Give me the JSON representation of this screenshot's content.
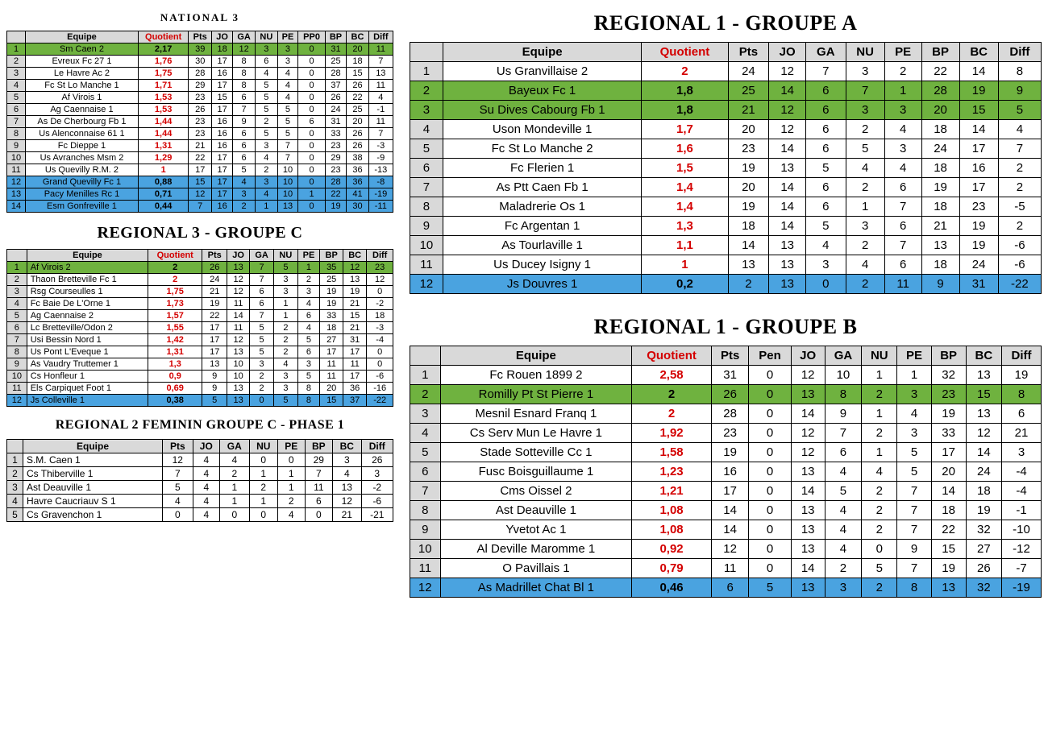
{
  "colors": {
    "highlight_green": "#6fb23f",
    "highlight_blue": "#4aa3e0",
    "header_bg": "#d9d9d9",
    "quotient_red": "#d40000"
  },
  "nat3": {
    "title": "NATIONAL 3",
    "columns": [
      "",
      "Equipe",
      "Quotient",
      "Pts",
      "JO",
      "GA",
      "NU",
      "PE",
      "PP0",
      "BP",
      "BC",
      "Diff"
    ],
    "rows": [
      {
        "hl": "green",
        "c": [
          "1",
          "Sm Caen 2",
          "2,17",
          "39",
          "18",
          "12",
          "3",
          "3",
          "0",
          "31",
          "20",
          "11"
        ]
      },
      {
        "c": [
          "2",
          "Evreux Fc 27 1",
          "1,76",
          "30",
          "17",
          "8",
          "6",
          "3",
          "0",
          "25",
          "18",
          "7"
        ]
      },
      {
        "c": [
          "3",
          "Le Havre Ac 2",
          "1,75",
          "28",
          "16",
          "8",
          "4",
          "4",
          "0",
          "28",
          "15",
          "13"
        ]
      },
      {
        "c": [
          "4",
          "Fc St Lo Manche 1",
          "1,71",
          "29",
          "17",
          "8",
          "5",
          "4",
          "0",
          "37",
          "26",
          "11"
        ]
      },
      {
        "c": [
          "5",
          "Af Virois 1",
          "1,53",
          "23",
          "15",
          "6",
          "5",
          "4",
          "0",
          "26",
          "22",
          "4"
        ]
      },
      {
        "c": [
          "6",
          "Ag Caennaise 1",
          "1,53",
          "26",
          "17",
          "7",
          "5",
          "5",
          "0",
          "24",
          "25",
          "-1"
        ]
      },
      {
        "c": [
          "7",
          "As De Cherbourg Fb 1",
          "1,44",
          "23",
          "16",
          "9",
          "2",
          "5",
          "6",
          "31",
          "20",
          "11"
        ]
      },
      {
        "c": [
          "8",
          "Us Alenconnaise 61 1",
          "1,44",
          "23",
          "16",
          "6",
          "5",
          "5",
          "0",
          "33",
          "26",
          "7"
        ]
      },
      {
        "c": [
          "9",
          "Fc Dieppe 1",
          "1,31",
          "21",
          "16",
          "6",
          "3",
          "7",
          "0",
          "23",
          "26",
          "-3"
        ]
      },
      {
        "c": [
          "10",
          "Us Avranches Msm 2",
          "1,29",
          "22",
          "17",
          "6",
          "4",
          "7",
          "0",
          "29",
          "38",
          "-9"
        ]
      },
      {
        "c": [
          "11",
          "Us Quevilly R.M. 2",
          "1",
          "17",
          "17",
          "5",
          "2",
          "10",
          "0",
          "23",
          "36",
          "-13"
        ]
      },
      {
        "hl": "blue",
        "c": [
          "12",
          "Grand Quevilly Fc 1",
          "0,88",
          "15",
          "17",
          "4",
          "3",
          "10",
          "0",
          "28",
          "36",
          "-8"
        ]
      },
      {
        "hl": "blue",
        "c": [
          "13",
          "Pacy Menilles Rc 1",
          "0,71",
          "12",
          "17",
          "3",
          "4",
          "10",
          "1",
          "22",
          "41",
          "-19"
        ]
      },
      {
        "hl": "blue",
        "c": [
          "14",
          "Esm Gonfreville 1",
          "0,44",
          "7",
          "16",
          "2",
          "1",
          "13",
          "0",
          "19",
          "30",
          "-11"
        ]
      }
    ]
  },
  "r3c": {
    "title": "REGIONAL 3 - GROUPE C",
    "columns": [
      "",
      "Equipe",
      "Quotient",
      "Pts",
      "JO",
      "GA",
      "NU",
      "PE",
      "BP",
      "BC",
      "Diff"
    ],
    "rows": [
      {
        "hl": "green",
        "c": [
          "1",
          "Af Virois 2",
          "2",
          "26",
          "13",
          "7",
          "5",
          "1",
          "35",
          "12",
          "23"
        ]
      },
      {
        "c": [
          "2",
          "Thaon Bretteville Fc 1",
          "2",
          "24",
          "12",
          "7",
          "3",
          "2",
          "25",
          "13",
          "12"
        ]
      },
      {
        "c": [
          "3",
          "Rsg Courseulles 1",
          "1,75",
          "21",
          "12",
          "6",
          "3",
          "3",
          "19",
          "19",
          "0"
        ]
      },
      {
        "c": [
          "4",
          "Fc Baie De L'Orne 1",
          "1,73",
          "19",
          "11",
          "6",
          "1",
          "4",
          "19",
          "21",
          "-2"
        ]
      },
      {
        "c": [
          "5",
          "Ag Caennaise 2",
          "1,57",
          "22",
          "14",
          "7",
          "1",
          "6",
          "33",
          "15",
          "18"
        ]
      },
      {
        "c": [
          "6",
          "Lc Bretteville/Odon 2",
          "1,55",
          "17",
          "11",
          "5",
          "2",
          "4",
          "18",
          "21",
          "-3"
        ]
      },
      {
        "c": [
          "7",
          "Usi Bessin Nord 1",
          "1,42",
          "17",
          "12",
          "5",
          "2",
          "5",
          "27",
          "31",
          "-4"
        ]
      },
      {
        "c": [
          "8",
          "Us Pont L'Eveque 1",
          "1,31",
          "17",
          "13",
          "5",
          "2",
          "6",
          "17",
          "17",
          "0"
        ]
      },
      {
        "c": [
          "9",
          "As Vaudry Truttemer 1",
          "1,3",
          "13",
          "10",
          "3",
          "4",
          "3",
          "11",
          "11",
          "0"
        ]
      },
      {
        "c": [
          "10",
          "Cs Honfleur 1",
          "0,9",
          "9",
          "10",
          "2",
          "3",
          "5",
          "11",
          "17",
          "-6"
        ]
      },
      {
        "c": [
          "11",
          "Els Carpiquet Foot 1",
          "0,69",
          "9",
          "13",
          "2",
          "3",
          "8",
          "20",
          "36",
          "-16"
        ]
      },
      {
        "hl": "blue",
        "c": [
          "12",
          "Js Colleville 1",
          "0,38",
          "5",
          "13",
          "0",
          "5",
          "8",
          "15",
          "37",
          "-22"
        ]
      }
    ]
  },
  "r2fem": {
    "title": "REGIONAL 2 FEMININ GROUPE C - PHASE 1",
    "columns": [
      "",
      "Equipe",
      "Pts",
      "JO",
      "GA",
      "NU",
      "PE",
      "BP",
      "BC",
      "Diff"
    ],
    "rows": [
      {
        "c": [
          "1",
          "S.M. Caen 1",
          "12",
          "4",
          "4",
          "0",
          "0",
          "29",
          "3",
          "26"
        ]
      },
      {
        "c": [
          "2",
          "Cs Thiberville 1",
          "7",
          "4",
          "2",
          "1",
          "1",
          "7",
          "4",
          "3"
        ]
      },
      {
        "c": [
          "3",
          "Ast Deauville 1",
          "5",
          "4",
          "1",
          "2",
          "1",
          "11",
          "13",
          "-2"
        ]
      },
      {
        "c": [
          "4",
          "Havre Caucriauv S 1",
          "4",
          "4",
          "1",
          "1",
          "2",
          "6",
          "12",
          "-6"
        ]
      },
      {
        "c": [
          "5",
          "Cs Gravenchon 1",
          "0",
          "4",
          "0",
          "0",
          "4",
          "0",
          "21",
          "-21"
        ]
      }
    ]
  },
  "r1a": {
    "title": "REGIONAL 1 - GROUPE A",
    "columns": [
      "",
      "Equipe",
      "Quotient",
      "Pts",
      "JO",
      "GA",
      "NU",
      "PE",
      "BP",
      "BC",
      "Diff"
    ],
    "rows": [
      {
        "c": [
          "1",
          "Us Granvillaise 2",
          "2",
          "24",
          "12",
          "7",
          "3",
          "2",
          "22",
          "14",
          "8"
        ]
      },
      {
        "hl": "green",
        "c": [
          "2",
          "Bayeux Fc 1",
          "1,8",
          "25",
          "14",
          "6",
          "7",
          "1",
          "28",
          "19",
          "9"
        ]
      },
      {
        "hl": "green",
        "c": [
          "3",
          "Su Dives Cabourg Fb 1",
          "1,8",
          "21",
          "12",
          "6",
          "3",
          "3",
          "20",
          "15",
          "5"
        ]
      },
      {
        "c": [
          "4",
          "Uson Mondeville 1",
          "1,7",
          "20",
          "12",
          "6",
          "2",
          "4",
          "18",
          "14",
          "4"
        ]
      },
      {
        "c": [
          "5",
          "Fc St Lo Manche 2",
          "1,6",
          "23",
          "14",
          "6",
          "5",
          "3",
          "24",
          "17",
          "7"
        ]
      },
      {
        "c": [
          "6",
          "Fc Flerien 1",
          "1,5",
          "19",
          "13",
          "5",
          "4",
          "4",
          "18",
          "16",
          "2"
        ]
      },
      {
        "c": [
          "7",
          "As Ptt Caen Fb 1",
          "1,4",
          "20",
          "14",
          "6",
          "2",
          "6",
          "19",
          "17",
          "2"
        ]
      },
      {
        "c": [
          "8",
          "Maladrerie Os 1",
          "1,4",
          "19",
          "14",
          "6",
          "1",
          "7",
          "18",
          "23",
          "-5"
        ]
      },
      {
        "c": [
          "9",
          "Fc Argentan 1",
          "1,3",
          "18",
          "14",
          "5",
          "3",
          "6",
          "21",
          "19",
          "2"
        ]
      },
      {
        "c": [
          "10",
          "As Tourlaville 1",
          "1,1",
          "14",
          "13",
          "4",
          "2",
          "7",
          "13",
          "19",
          "-6"
        ]
      },
      {
        "c": [
          "11",
          "Us Ducey Isigny 1",
          "1",
          "13",
          "13",
          "3",
          "4",
          "6",
          "18",
          "24",
          "-6"
        ]
      },
      {
        "hl": "blue",
        "c": [
          "12",
          "Js Douvres 1",
          "0,2",
          "2",
          "13",
          "0",
          "2",
          "11",
          "9",
          "31",
          "-22"
        ]
      }
    ]
  },
  "r1b": {
    "title": "REGIONAL 1 - GROUPE B",
    "columns": [
      "",
      "Equipe",
      "Quotient",
      "Pts",
      "Pen",
      "JO",
      "GA",
      "NU",
      "PE",
      "BP",
      "BC",
      "Diff"
    ],
    "rows": [
      {
        "c": [
          "1",
          "Fc Rouen 1899 2",
          "2,58",
          "31",
          "0",
          "12",
          "10",
          "1",
          "1",
          "32",
          "13",
          "19"
        ]
      },
      {
        "hl": "green",
        "c": [
          "2",
          "Romilly Pt St Pierre 1",
          "2",
          "26",
          "0",
          "13",
          "8",
          "2",
          "3",
          "23",
          "15",
          "8"
        ]
      },
      {
        "c": [
          "3",
          "Mesnil Esnard Franq 1",
          "2",
          "28",
          "0",
          "14",
          "9",
          "1",
          "4",
          "19",
          "13",
          "6"
        ]
      },
      {
        "c": [
          "4",
          "Cs Serv Mun Le Havre 1",
          "1,92",
          "23",
          "0",
          "12",
          "7",
          "2",
          "3",
          "33",
          "12",
          "21"
        ]
      },
      {
        "c": [
          "5",
          "Stade Sotteville Cc 1",
          "1,58",
          "19",
          "0",
          "12",
          "6",
          "1",
          "5",
          "17",
          "14",
          "3"
        ]
      },
      {
        "c": [
          "6",
          "Fusc Boisguillaume 1",
          "1,23",
          "16",
          "0",
          "13",
          "4",
          "4",
          "5",
          "20",
          "24",
          "-4"
        ]
      },
      {
        "c": [
          "7",
          "Cms Oissel 2",
          "1,21",
          "17",
          "0",
          "14",
          "5",
          "2",
          "7",
          "14",
          "18",
          "-4"
        ]
      },
      {
        "c": [
          "8",
          "Ast Deauville 1",
          "1,08",
          "14",
          "0",
          "13",
          "4",
          "2",
          "7",
          "18",
          "19",
          "-1"
        ]
      },
      {
        "c": [
          "9",
          "Yvetot Ac 1",
          "1,08",
          "14",
          "0",
          "13",
          "4",
          "2",
          "7",
          "22",
          "32",
          "-10"
        ]
      },
      {
        "c": [
          "10",
          "Al Deville Maromme 1",
          "0,92",
          "12",
          "0",
          "13",
          "4",
          "0",
          "9",
          "15",
          "27",
          "-12"
        ]
      },
      {
        "c": [
          "11",
          "O Pavillais 1",
          "0,79",
          "11",
          "0",
          "14",
          "2",
          "5",
          "7",
          "19",
          "26",
          "-7"
        ]
      },
      {
        "hl": "blue",
        "c": [
          "12",
          "As Madrillet Chat Bl 1",
          "0,46",
          "6",
          "5",
          "13",
          "3",
          "2",
          "8",
          "13",
          "32",
          "-19"
        ]
      }
    ]
  }
}
